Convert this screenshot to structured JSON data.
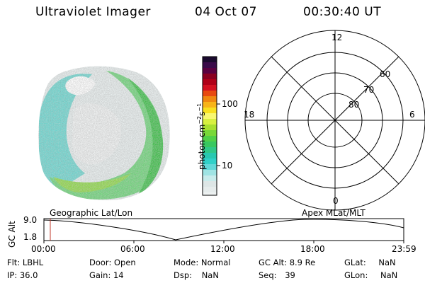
{
  "header": {
    "title": "Ultraviolet Imager",
    "date": "04 Oct 07",
    "time": "00:30:40 UT"
  },
  "colorbar": {
    "label": "photon cm⁻²s⁻¹",
    "label_main": "photon cm",
    "label_sup1": "−2",
    "label_s": "s",
    "label_sup2": "−1",
    "ticks": [
      "100",
      "10"
    ]
  },
  "polar_plot": {
    "mlt_labels": [
      "12",
      "18",
      "6",
      "0"
    ],
    "lat_labels": [
      "60",
      "70",
      "80"
    ]
  },
  "timeline": {
    "left_label": "Geographic Lat/Lon",
    "right_label": "Apex  MLat/MLT",
    "y_axis_label": "GC Alt",
    "y_ticks": [
      "9.0",
      "1.8"
    ],
    "x_ticks": [
      "00:00",
      "06:00",
      "12:00",
      "18:00",
      "23:59"
    ],
    "marker_color": "#c0392b"
  },
  "status": {
    "flt_label": "Flt:",
    "flt_value": "LBHL",
    "ip_label": "IP:",
    "ip_value": "36.0",
    "door_label": "Door:",
    "door_value": "Open",
    "gain_label": "Gain:",
    "gain_value": "14",
    "mode_label": "Mode:",
    "mode_value": "Normal",
    "dsp_label": "Dsp:",
    "dsp_value": "NaN",
    "gcalt_label": "GC Alt:",
    "gcalt_value": "8.9 Re",
    "seq_label": "Seq:",
    "seq_value": "39",
    "glat_label": "GLat:",
    "glat_value": "NaN",
    "glon_label": "GLon:",
    "glon_value": "NaN"
  }
}
